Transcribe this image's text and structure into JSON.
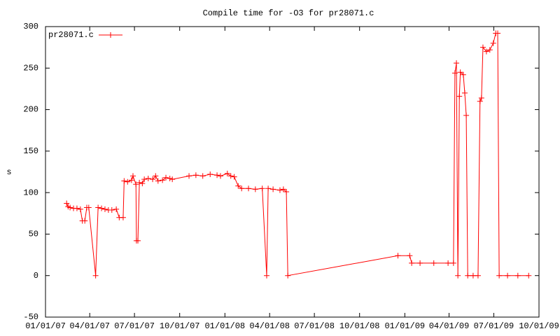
{
  "chart_data": {
    "type": "line",
    "title": "Compile time for -O3 for pr28071.c",
    "y_label": "s",
    "legend": "top-left",
    "x": [
      "2007-02-13",
      "2007-02-16",
      "2007-02-20",
      "2007-02-27",
      "2007-03-06",
      "2007-03-13",
      "2007-03-17",
      "2007-03-22",
      "2007-03-26",
      "2007-03-30",
      "2007-04-13",
      "2007-04-18",
      "2007-04-25",
      "2007-05-02",
      "2007-05-09",
      "2007-05-16",
      "2007-05-25",
      "2007-05-31",
      "2007-06-08",
      "2007-06-10",
      "2007-06-17",
      "2007-06-25",
      "2007-06-28",
      "2007-07-04",
      "2007-07-05",
      "2007-07-08",
      "2007-07-11",
      "2007-07-17",
      "2007-07-21",
      "2007-07-29",
      "2007-08-07",
      "2007-08-13",
      "2007-08-18",
      "2007-08-27",
      "2007-09-03",
      "2007-09-11",
      "2007-09-16",
      "2007-10-20",
      "2007-11-03",
      "2007-11-17",
      "2007-12-02",
      "2007-12-16",
      "2007-12-23",
      "2008-01-06",
      "2008-01-13",
      "2008-01-20",
      "2008-01-28",
      "2008-02-04",
      "2008-02-18",
      "2008-03-03",
      "2008-03-17",
      "2008-03-26",
      "2008-03-29",
      "2008-04-08",
      "2008-04-22",
      "2008-04-29",
      "2008-05-05",
      "2008-05-08",
      "2008-12-18",
      "2009-01-11",
      "2009-01-15",
      "2009-02-01",
      "2009-03-01",
      "2009-03-30",
      "2009-04-10",
      "2009-04-13",
      "2009-04-16",
      "2009-04-19",
      "2009-04-22",
      "2009-04-24",
      "2009-04-30",
      "2009-05-03",
      "2009-05-06",
      "2009-05-09",
      "2009-05-20",
      "2009-05-30",
      "2009-06-03",
      "2009-06-06",
      "2009-06-09",
      "2009-06-16",
      "2009-06-23",
      "2009-06-30",
      "2009-07-05",
      "2009-07-09",
      "2009-07-12",
      "2009-07-29",
      "2009-08-19",
      "2009-09-10"
    ],
    "series": [
      {
        "name": "pr28071.c",
        "color": "#ff0000",
        "values": [
          87,
          83,
          82,
          81,
          81,
          80,
          66,
          66,
          82,
          82,
          0,
          82,
          81,
          80,
          79,
          79,
          80,
          70,
          70,
          114,
          113,
          115,
          120,
          110,
          42,
          42,
          112,
          111,
          116,
          117,
          116,
          120,
          114,
          115,
          118,
          117,
          116,
          120,
          121,
          120,
          122,
          121,
          120,
          123,
          120,
          119,
          108,
          105,
          105,
          104,
          105,
          0,
          105,
          104,
          103,
          104,
          101,
          0,
          24,
          24,
          15,
          15,
          15,
          15,
          15,
          244,
          256,
          0,
          216,
          245,
          242,
          220,
          193,
          0,
          0,
          0,
          210,
          214,
          275,
          270,
          272,
          280,
          292,
          292,
          0,
          0,
          0,
          0
        ]
      }
    ],
    "xlim": [
      "2007-01-01",
      "2009-10-01"
    ],
    "xticks": [
      {
        "value": "2007-01-01",
        "label": "01/01/07"
      },
      {
        "value": "2007-04-01",
        "label": "04/01/07"
      },
      {
        "value": "2007-07-01",
        "label": "07/01/07"
      },
      {
        "value": "2007-10-01",
        "label": "10/01/07"
      },
      {
        "value": "2008-01-01",
        "label": "01/01/08"
      },
      {
        "value": "2008-04-01",
        "label": "04/01/08"
      },
      {
        "value": "2008-07-01",
        "label": "07/01/08"
      },
      {
        "value": "2008-10-01",
        "label": "10/01/08"
      },
      {
        "value": "2009-01-01",
        "label": "01/01/09"
      },
      {
        "value": "2009-04-01",
        "label": "04/01/09"
      },
      {
        "value": "2009-07-01",
        "label": "07/01/09"
      },
      {
        "value": "2009-10-01",
        "label": "10/01/09"
      }
    ],
    "ylim": [
      -50,
      300
    ],
    "yticks": [
      -50,
      0,
      50,
      100,
      150,
      200,
      250,
      300
    ]
  }
}
